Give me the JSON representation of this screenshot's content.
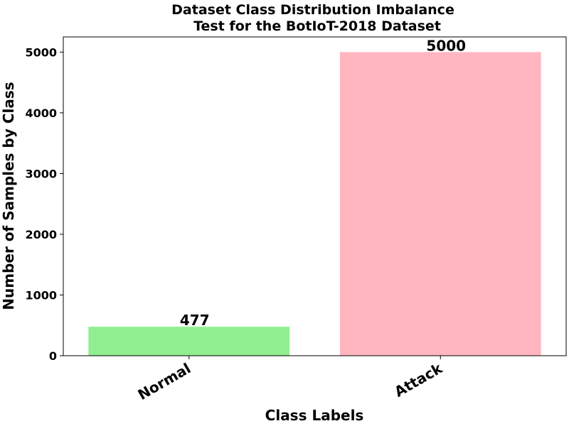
{
  "chart_data": {
    "type": "bar",
    "title": "Dataset Class Distribution Imbalance",
    "subtitle": "Test for the BotIoT-2018 Dataset",
    "xlabel": "Class Labels",
    "ylabel": "Number of Samples by Class",
    "categories": [
      "Normal",
      "Attack"
    ],
    "values": [
      477,
      5000
    ],
    "data_labels": [
      "477",
      "5000"
    ],
    "colors": [
      "#90ee90",
      "#ffb6c1"
    ],
    "ylim": [
      0,
      5250
    ],
    "yticks": [
      0,
      1000,
      2000,
      3000,
      4000,
      5000
    ],
    "ytick_labels": [
      "0",
      "1000",
      "2000",
      "3000",
      "4000",
      "5000"
    ],
    "grid": false,
    "legend": "none"
  }
}
